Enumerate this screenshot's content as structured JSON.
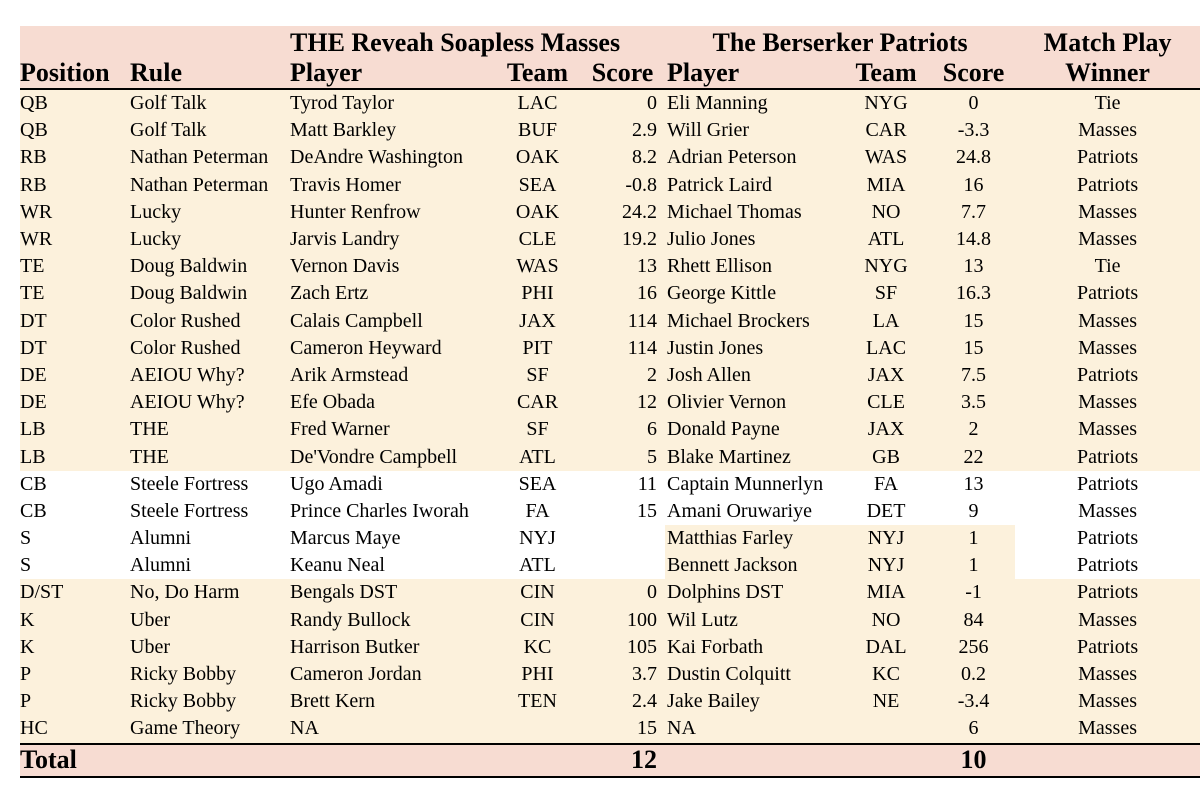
{
  "header": {
    "team1_name": "THE Reveah Soapless Masses",
    "team2_name": "The Berserker Patriots",
    "match_play_line1": "Match Play",
    "match_play_line2": "Winner",
    "col_position": "Position",
    "col_rule": "Rule",
    "col_player1": "Player",
    "col_team1": "Team",
    "col_score1": "Score",
    "col_player2": "Player",
    "col_team2": "Team",
    "col_score2": "Score"
  },
  "rows": [
    {
      "pos": "QB",
      "rule": "Golf Talk",
      "p1": "Tyrod Taylor",
      "t1": "LAC",
      "s1": "0",
      "p2": "Eli Manning",
      "t2": "NYG",
      "s2": "0",
      "winner": "Tie"
    },
    {
      "pos": "QB",
      "rule": "Golf Talk",
      "p1": "Matt Barkley",
      "t1": "BUF",
      "s1": "2.9",
      "p2": "Will Grier",
      "t2": "CAR",
      "s2": "-3.3",
      "winner": "Masses"
    },
    {
      "pos": "RB",
      "rule": "Nathan Peterman",
      "p1": "DeAndre Washington",
      "t1": "OAK",
      "s1": "8.2",
      "p2": "Adrian Peterson",
      "t2": "WAS",
      "s2": "24.8",
      "winner": "Patriots"
    },
    {
      "pos": "RB",
      "rule": "Nathan Peterman",
      "p1": "Travis Homer",
      "t1": "SEA",
      "s1": "-0.8",
      "p2": "Patrick Laird",
      "t2": "MIA",
      "s2": "16",
      "winner": "Patriots"
    },
    {
      "pos": "WR",
      "rule": "Lucky",
      "p1": "Hunter Renfrow",
      "t1": "OAK",
      "s1": "24.2",
      "p2": "Michael Thomas",
      "t2": "NO",
      "s2": "7.7",
      "winner": "Masses"
    },
    {
      "pos": "WR",
      "rule": "Lucky",
      "p1": "Jarvis Landry",
      "t1": "CLE",
      "s1": "19.2",
      "p2": "Julio Jones",
      "t2": "ATL",
      "s2": "14.8",
      "winner": "Masses"
    },
    {
      "pos": "TE",
      "rule": "Doug Baldwin",
      "p1": "Vernon Davis",
      "t1": "WAS",
      "s1": "13",
      "p2": "Rhett Ellison",
      "t2": "NYG",
      "s2": "13",
      "winner": "Tie"
    },
    {
      "pos": "TE",
      "rule": "Doug Baldwin",
      "p1": "Zach Ertz",
      "t1": "PHI",
      "s1": "16",
      "p2": "George Kittle",
      "t2": "SF",
      "s2": "16.3",
      "winner": "Patriots"
    },
    {
      "pos": "DT",
      "rule": "Color Rushed",
      "p1": "Calais Campbell",
      "t1": "JAX",
      "s1": "114",
      "p2": "Michael Brockers",
      "t2": "LA",
      "s2": "15",
      "winner": "Masses"
    },
    {
      "pos": "DT",
      "rule": "Color Rushed",
      "p1": "Cameron Heyward",
      "t1": "PIT",
      "s1": "114",
      "p2": "Justin Jones",
      "t2": "LAC",
      "s2": "15",
      "winner": "Masses"
    },
    {
      "pos": "DE",
      "rule": "AEIOU Why?",
      "p1": "Arik Armstead",
      "t1": "SF",
      "s1": "2",
      "p2": "Josh Allen",
      "t2": "JAX",
      "s2": "7.5",
      "winner": "Patriots"
    },
    {
      "pos": "DE",
      "rule": "AEIOU Why?",
      "p1": "Efe Obada",
      "t1": "CAR",
      "s1": "12",
      "p2": "Olivier Vernon",
      "t2": "CLE",
      "s2": "3.5",
      "winner": "Masses"
    },
    {
      "pos": "LB",
      "rule": "THE",
      "p1": "Fred Warner",
      "t1": "SF",
      "s1": "6",
      "p2": "Donald Payne",
      "t2": "JAX",
      "s2": "2",
      "winner": "Masses"
    },
    {
      "pos": "LB",
      "rule": "THE",
      "p1": "De'Vondre Campbell",
      "t1": "ATL",
      "s1": "5",
      "p2": "Blake Martinez",
      "t2": "GB",
      "s2": "22",
      "winner": "Patriots"
    },
    {
      "pos": "CB",
      "rule": "Steele Fortress",
      "p1": "Ugo Amadi",
      "t1": "SEA",
      "s1": "11",
      "p2": "Captain Munnerlyn",
      "t2": "FA",
      "s2": "13",
      "winner": "Patriots"
    },
    {
      "pos": "CB",
      "rule": "Steele Fortress",
      "p1": "Prince Charles Iworah",
      "t1": "FA",
      "s1": "15",
      "p2": "Amani Oruwariye",
      "t2": "DET",
      "s2": "9",
      "winner": "Masses"
    },
    {
      "pos": "S",
      "rule": "Alumni",
      "p1": "Marcus Maye",
      "t1": "NYJ",
      "s1": "",
      "p2": "Matthias Farley",
      "t2": "NYJ",
      "s2": "1",
      "winner": "Patriots"
    },
    {
      "pos": "S",
      "rule": "Alumni",
      "p1": "Keanu Neal",
      "t1": "ATL",
      "s1": "",
      "p2": "Bennett Jackson",
      "t2": "NYJ",
      "s2": "1",
      "winner": "Patriots"
    },
    {
      "pos": "D/ST",
      "rule": "No, Do Harm",
      "p1": "Bengals DST",
      "t1": "CIN",
      "s1": "0",
      "p2": "Dolphins DST",
      "t2": "MIA",
      "s2": "-1",
      "winner": "Patriots"
    },
    {
      "pos": "K",
      "rule": "Uber",
      "p1": "Randy Bullock",
      "t1": "CIN",
      "s1": "100",
      "p2": "Wil Lutz",
      "t2": "NO",
      "s2": "84",
      "winner": "Masses"
    },
    {
      "pos": "K",
      "rule": "Uber",
      "p1": "Harrison Butker",
      "t1": "KC",
      "s1": "105",
      "p2": "Kai Forbath",
      "t2": "DAL",
      "s2": "256",
      "winner": "Patriots"
    },
    {
      "pos": "P",
      "rule": "Ricky Bobby",
      "p1": "Cameron Jordan",
      "t1": "PHI",
      "s1": "3.7",
      "p2": "Dustin Colquitt",
      "t2": "KC",
      "s2": "0.2",
      "winner": "Masses"
    },
    {
      "pos": "P",
      "rule": "Ricky Bobby",
      "p1": "Brett Kern",
      "t1": "TEN",
      "s1": "2.4",
      "p2": "Jake Bailey",
      "t2": "NE",
      "s2": "-3.4",
      "winner": "Masses"
    },
    {
      "pos": "HC",
      "rule": "Game Theory",
      "p1": "NA",
      "t1": "",
      "s1": "15",
      "p2": "NA",
      "t2": "",
      "s2": "6",
      "winner": "Masses"
    }
  ],
  "total": {
    "label": "Total",
    "team1": "12",
    "team2": "10"
  },
  "colors": {
    "header_bg": "#f7dcd2",
    "row_highlight": "#fcf1dc",
    "row_plain": "#ffffff"
  }
}
